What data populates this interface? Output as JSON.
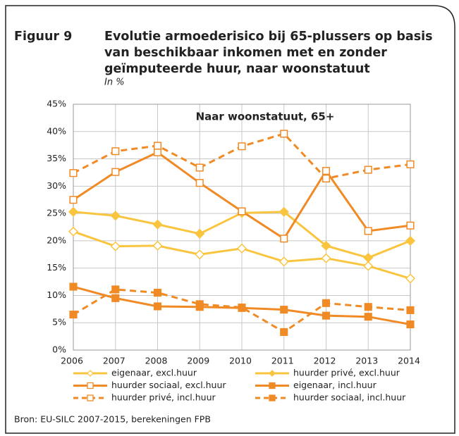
{
  "figure": {
    "label": "Figuur 9",
    "title": [
      "Evolutie armoederisico bij 65-plussers op basis",
      "van beschikbaar inkomen met en zonder",
      "geïmputeerde huur, naar woonstatuut"
    ],
    "subtitle": "In %",
    "source": "Bron: EU-SILC 2007-2015, berekeningen FPB"
  },
  "chart_data": {
    "type": "line",
    "title": "Naar woonstatuut, 65+",
    "categories": [
      "2006",
      "2007",
      "2008",
      "2009",
      "2010",
      "2011",
      "2012",
      "2013",
      "2014"
    ],
    "ylim": [
      0,
      45
    ],
    "yticks": [
      {
        "value": 0,
        "label": "0%"
      },
      {
        "value": 5,
        "label": "5%"
      },
      {
        "value": 10,
        "label": "10%"
      },
      {
        "value": 15,
        "label": "15%"
      },
      {
        "value": 20,
        "label": "20%"
      },
      {
        "value": 25,
        "label": "25%"
      },
      {
        "value": 30,
        "label": "30%"
      },
      {
        "value": 35,
        "label": "35%"
      },
      {
        "value": 40,
        "label": "40%"
      },
      {
        "value": 45,
        "label": "45%"
      }
    ],
    "grid": true,
    "series": [
      {
        "name": "eigenaar, excl.huur",
        "color": "#f9c53f",
        "marker": "diamond",
        "filled": false,
        "dashed": false,
        "values": [
          21.7,
          19.0,
          19.1,
          17.5,
          18.6,
          16.2,
          16.8,
          15.4,
          13.1
        ]
      },
      {
        "name": "huurder privé, excl.huur",
        "color": "#f9c53f",
        "marker": "diamond",
        "filled": true,
        "dashed": false,
        "values": [
          25.3,
          24.6,
          23.0,
          21.3,
          25.1,
          25.3,
          19.1,
          16.9,
          20.0
        ]
      },
      {
        "name": "huurder sociaal, excl.huur",
        "color": "#f08a24",
        "marker": "square",
        "filled": false,
        "dashed": false,
        "values": [
          27.5,
          32.6,
          36.2,
          30.6,
          25.4,
          20.4,
          32.8,
          21.8,
          22.8
        ]
      },
      {
        "name": "eigenaar, incl.huur",
        "color": "#f08a24",
        "marker": "square",
        "filled": true,
        "dashed": false,
        "values": [
          11.6,
          9.5,
          8.0,
          7.9,
          7.7,
          7.4,
          6.3,
          6.1,
          4.7
        ]
      },
      {
        "name": "huurder privé, incl.huur",
        "color": "#f08a24",
        "marker": "square",
        "filled": false,
        "dashed": true,
        "values": [
          32.4,
          36.4,
          37.4,
          33.4,
          37.3,
          39.6,
          31.4,
          33.0,
          34.0
        ]
      },
      {
        "name": "huurder sociaal, incl.huur",
        "color": "#f08a24",
        "marker": "square",
        "filled": true,
        "dashed": true,
        "values": [
          6.5,
          11.1,
          10.5,
          8.4,
          7.8,
          3.3,
          8.6,
          7.9,
          7.3
        ]
      }
    ]
  }
}
